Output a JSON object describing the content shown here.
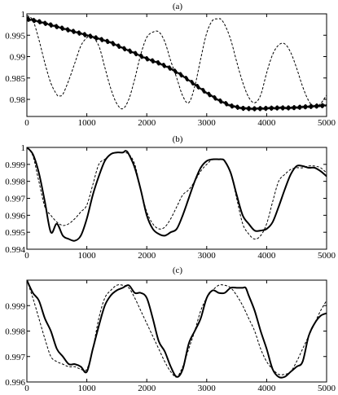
{
  "chart_data": [
    {
      "type": "line",
      "title": "(a)",
      "xlim": [
        0,
        5000
      ],
      "ylim": [
        0.976,
        1.0
      ],
      "xticks": [
        0,
        1000,
        2000,
        3000,
        4000,
        5000
      ],
      "xtick_labels": [
        "0",
        "1000",
        "2000",
        "3000",
        "4000",
        "5000"
      ],
      "yticks": [
        0.98,
        0.985,
        0.99,
        0.995,
        1.0
      ],
      "ytick_labels": [
        "0.98",
        "0.985",
        "0.99",
        "0.995",
        "1"
      ],
      "series": [
        {
          "style": "dashed",
          "x": [
            0,
            100,
            200,
            300,
            400,
            500,
            540,
            600,
            700,
            800,
            900,
            1000,
            1080,
            1200,
            1300,
            1400,
            1500,
            1600,
            1700,
            1800,
            1900,
            2000,
            2100,
            2200,
            2300,
            2400,
            2500,
            2600,
            2700,
            2800,
            2900,
            3000,
            3100,
            3200,
            3230,
            3300,
            3400,
            3500,
            3600,
            3700,
            3800,
            3900,
            4000,
            4100,
            4200,
            4300,
            4400,
            4500,
            4600,
            4700,
            4800,
            4900,
            5000
          ],
          "y": [
            0.9996,
            0.9985,
            0.994,
            0.9885,
            0.9838,
            0.9811,
            0.9808,
            0.9812,
            0.9845,
            0.9885,
            0.9925,
            0.9944,
            0.9948,
            0.9925,
            0.9875,
            0.9825,
            0.979,
            0.9778,
            0.98,
            0.9848,
            0.9905,
            0.9945,
            0.9957,
            0.9958,
            0.9935,
            0.989,
            0.985,
            0.9808,
            0.9792,
            0.983,
            0.9895,
            0.9955,
            0.9985,
            0.9988,
            0.9988,
            0.9975,
            0.994,
            0.9888,
            0.984,
            0.9805,
            0.9792,
            0.981,
            0.9862,
            0.9905,
            0.9927,
            0.993,
            0.991,
            0.9873,
            0.983,
            0.9797,
            0.9781,
            0.979,
            0.981
          ]
        },
        {
          "style": "solid-noisy",
          "x": [
            0,
            200,
            400,
            600,
            800,
            1000,
            1200,
            1400,
            1600,
            1800,
            2000,
            2200,
            2400,
            2600,
            2800,
            3000,
            3200,
            3400,
            3600,
            3800,
            4000,
            4200,
            4400,
            4600,
            4800,
            5000
          ],
          "y": [
            0.9988,
            0.9982,
            0.9974,
            0.9966,
            0.9958,
            0.995,
            0.9942,
            0.9933,
            0.992,
            0.9908,
            0.9895,
            0.9885,
            0.9872,
            0.9855,
            0.9835,
            0.9815,
            0.9798,
            0.9785,
            0.9779,
            0.9778,
            0.9779,
            0.978,
            0.978,
            0.9782,
            0.9784,
            0.9786
          ]
        }
      ]
    },
    {
      "type": "line",
      "title": "(b)",
      "xlim": [
        0,
        5000
      ],
      "ylim": [
        0.994,
        1.0
      ],
      "xticks": [
        0,
        1000,
        2000,
        3000,
        4000,
        5000
      ],
      "xtick_labels": [
        "0",
        "1000",
        "2000",
        "3000",
        "4000",
        "5000"
      ],
      "yticks": [
        0.994,
        0.995,
        0.996,
        0.997,
        0.998,
        0.999,
        1.0
      ],
      "ytick_labels": [
        "0.994",
        "0.995",
        "0.996",
        "0.997",
        "0.998",
        "0.999",
        "1"
      ],
      "series": [
        {
          "style": "solid",
          "x": [
            0,
            100,
            200,
            300,
            400,
            500,
            600,
            700,
            800,
            900,
            1000,
            1100,
            1200,
            1300,
            1400,
            1500,
            1600,
            1650,
            1700,
            1800,
            1900,
            2000,
            2100,
            2200,
            2300,
            2400,
            2500,
            2600,
            2700,
            2800,
            2900,
            3000,
            3100,
            3200,
            3250,
            3300,
            3400,
            3500,
            3600,
            3700,
            3800,
            3900,
            4000,
            4100,
            4200,
            4300,
            4400,
            4500,
            4600,
            4700,
            4800,
            4900,
            5000
          ],
          "y": [
            1.0,
            0.9996,
            0.9985,
            0.9968,
            0.995,
            0.9955,
            0.9948,
            0.9946,
            0.9945,
            0.9948,
            0.9958,
            0.9972,
            0.9983,
            0.9992,
            0.9996,
            0.9997,
            0.9997,
            0.9998,
            0.9996,
            0.9988,
            0.9975,
            0.996,
            0.9952,
            0.9949,
            0.9948,
            0.995,
            0.9952,
            0.996,
            0.997,
            0.998,
            0.9988,
            0.9992,
            0.9993,
            0.9993,
            0.9993,
            0.9992,
            0.9985,
            0.9972,
            0.996,
            0.9955,
            0.9951,
            0.9951,
            0.9952,
            0.9956,
            0.9965,
            0.9975,
            0.9984,
            0.9989,
            0.9989,
            0.9988,
            0.9988,
            0.9986,
            0.9983
          ]
        },
        {
          "style": "dashed",
          "x": [
            0,
            100,
            200,
            300,
            400,
            500,
            600,
            700,
            800,
            900,
            1000,
            1100,
            1200,
            1300,
            1400,
            1500,
            1600,
            1700,
            1800,
            1900,
            2000,
            2100,
            2200,
            2300,
            2400,
            2500,
            2600,
            2700,
            2800,
            2900,
            3000,
            3100,
            3200,
            3300,
            3400,
            3500,
            3600,
            3700,
            3800,
            3900,
            4000,
            4100,
            4200,
            4300,
            4400,
            4500,
            4600,
            4700,
            4800,
            4900,
            5000
          ],
          "y": [
            1.0,
            0.9995,
            0.998,
            0.9965,
            0.996,
            0.9956,
            0.9954,
            0.9955,
            0.9958,
            0.9962,
            0.9966,
            0.9978,
            0.999,
            0.9993,
            0.9996,
            0.9997,
            0.9997,
            0.9996,
            0.999,
            0.9975,
            0.9962,
            0.9955,
            0.9952,
            0.9953,
            0.9958,
            0.9965,
            0.9972,
            0.9975,
            0.998,
            0.9986,
            0.999,
            0.9993,
            0.9993,
            0.9992,
            0.9985,
            0.997,
            0.9955,
            0.9949,
            0.9946,
            0.9948,
            0.9955,
            0.9968,
            0.998,
            0.9984,
            0.9987,
            0.9988,
            0.9988,
            0.9989,
            0.9989,
            0.9988,
            0.9985
          ]
        }
      ]
    },
    {
      "type": "line",
      "title": "(c)",
      "xlim": [
        0,
        5000
      ],
      "ylim": [
        0.996,
        1.0
      ],
      "xticks": [
        0,
        1000,
        2000,
        3000,
        4000,
        5000
      ],
      "xtick_labels": [
        "0",
        "1000",
        "2000",
        "3000",
        "4000",
        "5000"
      ],
      "yticks": [
        0.996,
        0.997,
        0.998,
        0.999
      ],
      "ytick_labels": [
        "0.996",
        "0.997",
        "0.998",
        "0.999"
      ],
      "series": [
        {
          "style": "solid",
          "x": [
            0,
            100,
            200,
            300,
            400,
            500,
            600,
            700,
            800,
            900,
            1000,
            1100,
            1200,
            1300,
            1400,
            1500,
            1600,
            1700,
            1800,
            1900,
            2000,
            2100,
            2200,
            2300,
            2400,
            2500,
            2600,
            2700,
            2800,
            2900,
            3000,
            3100,
            3200,
            3300,
            3400,
            3500,
            3600,
            3650,
            3700,
            3800,
            3900,
            4000,
            4100,
            4200,
            4300,
            4400,
            4500,
            4600,
            4700,
            4800,
            4900,
            5000
          ],
          "y": [
            1.0,
            0.9995,
            0.9992,
            0.9985,
            0.998,
            0.9973,
            0.997,
            0.9967,
            0.9967,
            0.9966,
            0.9964,
            0.9973,
            0.9982,
            0.999,
            0.9994,
            0.9996,
            0.9997,
            0.9998,
            0.9995,
            0.9995,
            0.9993,
            0.9985,
            0.9976,
            0.9972,
            0.9966,
            0.9962,
            0.9965,
            0.9975,
            0.998,
            0.9985,
            0.9993,
            0.9996,
            0.9995,
            0.9995,
            0.9997,
            0.9997,
            0.9997,
            0.9997,
            0.9994,
            0.9988,
            0.998,
            0.9973,
            0.9965,
            0.9962,
            0.9962,
            0.9964,
            0.9966,
            0.9968,
            0.9978,
            0.9983,
            0.9986,
            0.9987
          ]
        },
        {
          "style": "dashed",
          "x": [
            0,
            100,
            200,
            300,
            400,
            500,
            600,
            700,
            800,
            900,
            1000,
            1100,
            1200,
            1300,
            1400,
            1500,
            1600,
            1700,
            1800,
            1900,
            2000,
            2100,
            2200,
            2300,
            2400,
            2500,
            2600,
            2700,
            2800,
            2900,
            3000,
            3100,
            3200,
            3300,
            3400,
            3500,
            3600,
            3700,
            3800,
            3900,
            4000,
            4100,
            4200,
            4300,
            4400,
            4500,
            4600,
            4700,
            4800,
            4900,
            5000
          ],
          "y": [
            1.0,
            0.9993,
            0.9985,
            0.9977,
            0.997,
            0.9968,
            0.9967,
            0.9966,
            0.9966,
            0.9965,
            0.9965,
            0.9973,
            0.9985,
            0.9993,
            0.9996,
            0.9998,
            0.9998,
            0.9997,
            0.9993,
            0.9988,
            0.9983,
            0.9978,
            0.9973,
            0.9968,
            0.9964,
            0.9962,
            0.9966,
            0.9973,
            0.998,
            0.9988,
            0.9993,
            0.9996,
            0.9998,
            0.9998,
            0.9997,
            0.9994,
            0.999,
            0.9985,
            0.998,
            0.9973,
            0.9968,
            0.9965,
            0.9963,
            0.9963,
            0.9964,
            0.9968,
            0.9973,
            0.9978,
            0.9983,
            0.9988,
            0.9992
          ]
        }
      ]
    }
  ]
}
